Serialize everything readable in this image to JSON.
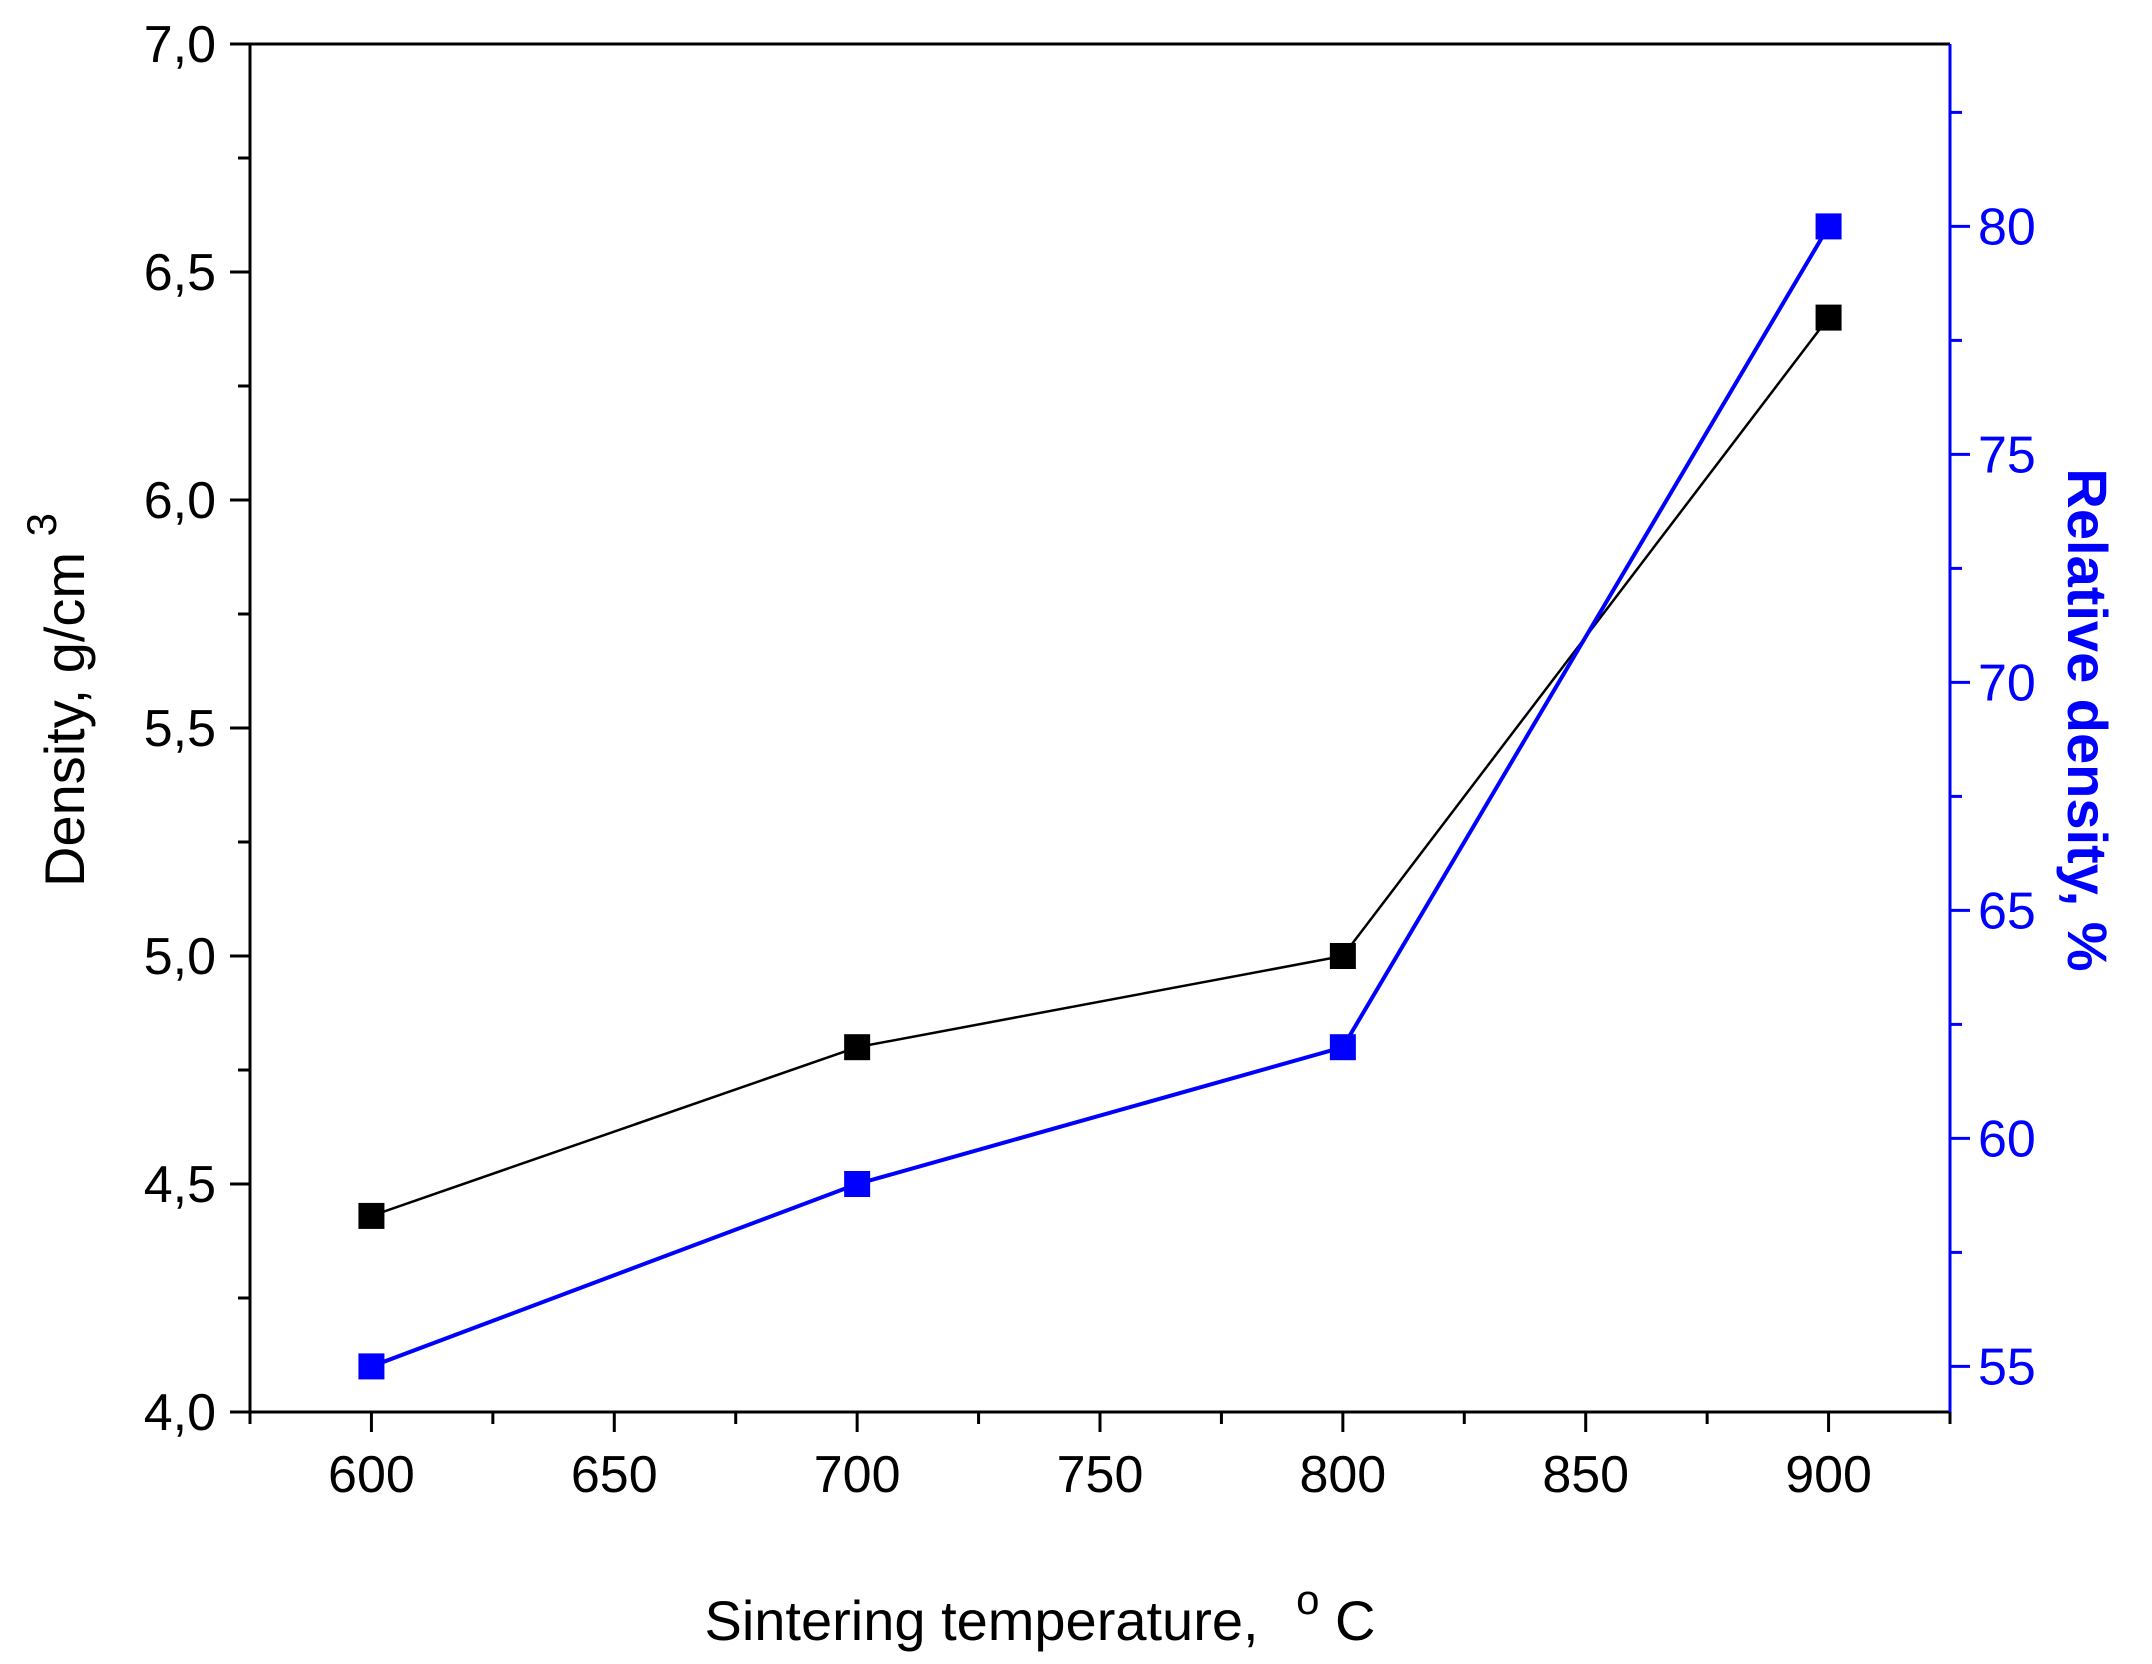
{
  "chart_data": {
    "type": "line",
    "title": "",
    "xlabel": "Sintering temperature,",
    "xlabel_unit": "C",
    "xlabel_unit_super": "o",
    "ylabel": "Density, g/cm",
    "ylabel_super": "3",
    "y2label": "Relative density, %",
    "xlim": [
      575,
      925
    ],
    "ylim": [
      4.0,
      7.0
    ],
    "y2lim": [
      54,
      84
    ],
    "x_ticks": [
      600,
      650,
      700,
      750,
      800,
      850,
      900
    ],
    "y_ticks": [
      4.0,
      4.5,
      5.0,
      5.5,
      6.0,
      6.5,
      7.0
    ],
    "y_tick_labels": [
      "4,0",
      "4,5",
      "5,0",
      "5,5",
      "6,0",
      "6,5",
      "7,0"
    ],
    "y2_ticks": [
      55,
      60,
      65,
      70,
      75,
      80
    ],
    "y2_tick_labels": [
      "55",
      "60",
      "65",
      "70",
      "75",
      "80"
    ],
    "grid": false,
    "series": [
      {
        "name": "Density",
        "axis": "left",
        "color": "#000000",
        "marker": "square",
        "x": [
          600,
          700,
          800,
          900
        ],
        "y": [
          4.43,
          4.8,
          5.0,
          6.4
        ]
      },
      {
        "name": "Relative density",
        "axis": "right",
        "color": "#0000ff",
        "marker": "square",
        "x": [
          600,
          700,
          800,
          900
        ],
        "y": [
          55,
          59,
          62,
          80
        ]
      }
    ],
    "axis_colors": {
      "left": "#000000",
      "right": "#0000ff"
    }
  }
}
